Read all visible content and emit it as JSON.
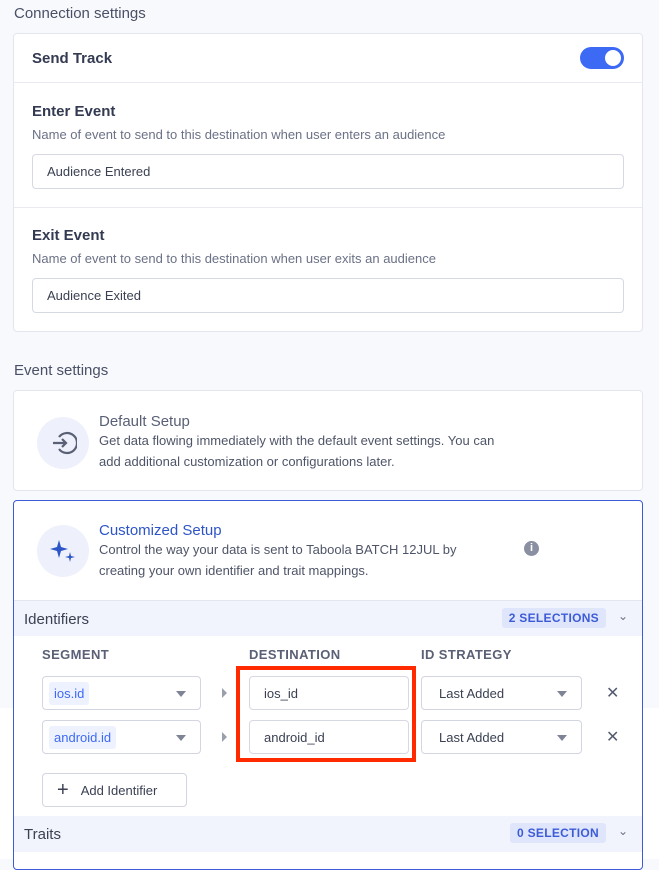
{
  "connection": {
    "title": "Connection settings",
    "send_track": {
      "label": "Send Track",
      "enabled": true
    },
    "enter_event": {
      "label": "Enter Event",
      "hint": "Name of event to send to this destination when user enters an audience",
      "value": "Audience Entered"
    },
    "exit_event": {
      "label": "Exit Event",
      "hint": "Name of event to send to this destination when user exits an audience",
      "value": "Audience Exited"
    }
  },
  "event": {
    "title": "Event settings",
    "default": {
      "title": "Default Setup",
      "desc1": "Get data flowing immediately with the default event settings. You can",
      "desc2": "add additional customization or configurations later.",
      "icon": "sign-in-icon"
    },
    "custom": {
      "title": "Customized Setup",
      "desc1": "Control the way your data is sent to Taboola BATCH 12JUL by",
      "desc2": "creating your own identifier and trait mappings.",
      "icon": "sparkles-icon"
    }
  },
  "identifiers": {
    "title": "Identifiers",
    "badge": "2 SELECTIONS",
    "columns": {
      "segment": "SEGMENT",
      "destination": "DESTINATION",
      "strategy": "ID STRATEGY"
    },
    "rows": [
      {
        "segment": "ios.id",
        "destination": "ios_id",
        "strategy": "Last Added"
      },
      {
        "segment": "android.id",
        "destination": "android_id",
        "strategy": "Last Added"
      }
    ],
    "add_label": "Add Identifier"
  },
  "traits": {
    "title": "Traits",
    "badge": "0 SELECTION"
  },
  "colors": {
    "accent": "#3d6af5",
    "highlight": "#ff2a00"
  }
}
